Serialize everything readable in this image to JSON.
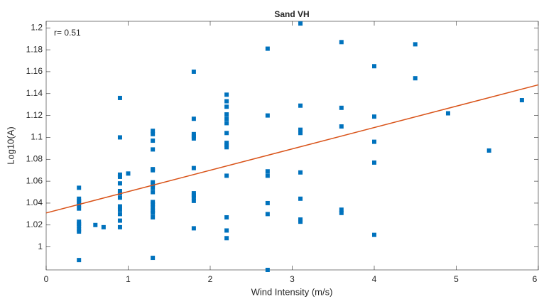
{
  "chart_data": {
    "type": "scatter",
    "title": "Sand VH",
    "annotation": "r= 0.51",
    "xlabel": "Wind Intensity (m/s)",
    "ylabel": "Log10(A)",
    "xlim": [
      0,
      6
    ],
    "ylim": [
      0.979,
      1.206
    ],
    "xticks": [
      0,
      1,
      2,
      3,
      4,
      5,
      6
    ],
    "yticks": [
      1,
      1.02,
      1.04,
      1.06,
      1.08,
      1.1,
      1.12,
      1.14,
      1.16,
      1.18,
      1.2
    ],
    "color": "#0072bd",
    "x": [
      0.4,
      0.4,
      0.4,
      0.4,
      0.4,
      0.4,
      0.4,
      0.4,
      0.4,
      0.4,
      0.4,
      0.4,
      0.6,
      0.7,
      0.9,
      0.9,
      0.9,
      0.9,
      0.9,
      0.9,
      0.9,
      0.9,
      0.9,
      0.9,
      0.9,
      0.9,
      0.9,
      1.0,
      1.3,
      1.3,
      1.3,
      1.3,
      1.3,
      1.3,
      1.3,
      1.3,
      1.3,
      1.3,
      1.3,
      1.3,
      1.3,
      1.3,
      1.3,
      1.3,
      1.3,
      1.8,
      1.8,
      1.8,
      1.8,
      1.8,
      1.8,
      1.8,
      1.8,
      1.8,
      1.8,
      1.8,
      2.2,
      2.2,
      2.2,
      2.2,
      2.2,
      2.2,
      2.2,
      2.2,
      2.2,
      2.2,
      2.2,
      2.2,
      2.2,
      2.2,
      2.7,
      2.7,
      2.7,
      2.7,
      2.7,
      2.7,
      2.7,
      3.1,
      3.1,
      3.1,
      3.1,
      3.1,
      3.1,
      3.1,
      3.1,
      3.6,
      3.6,
      3.6,
      3.6,
      3.6,
      4.0,
      4.0,
      4.0,
      4.0,
      4.0,
      4.5,
      4.5,
      4.9,
      5.4,
      5.8
    ],
    "values": [
      1.054,
      1.044,
      1.042,
      1.04,
      1.038,
      1.035,
      1.023,
      1.021,
      1.019,
      1.016,
      1.014,
      0.988,
      1.02,
      1.018,
      1.136,
      1.1,
      1.066,
      1.064,
      1.058,
      1.051,
      1.049,
      1.045,
      1.037,
      1.034,
      1.03,
      1.024,
      1.018,
      1.067,
      1.106,
      1.103,
      1.097,
      1.089,
      1.071,
      1.07,
      1.059,
      1.057,
      1.054,
      1.05,
      1.041,
      1.039,
      1.036,
      1.033,
      1.031,
      1.027,
      0.99,
      1.16,
      1.117,
      1.103,
      1.101,
      1.099,
      1.072,
      1.049,
      1.047,
      1.045,
      1.042,
      1.017,
      1.139,
      1.133,
      1.128,
      1.121,
      1.117,
      1.113,
      1.104,
      1.095,
      1.093,
      1.091,
      1.065,
      1.027,
      1.015,
      1.008,
      1.181,
      1.12,
      1.069,
      1.065,
      1.04,
      1.03,
      0.979,
      1.204,
      1.129,
      1.107,
      1.104,
      1.068,
      1.044,
      1.025,
      1.023,
      1.187,
      1.127,
      1.11,
      1.034,
      1.031,
      1.165,
      1.119,
      1.096,
      1.077,
      1.011,
      1.185,
      1.154,
      1.122,
      1.088,
      1.134
    ],
    "fit": {
      "x": [
        0,
        6
      ],
      "values": [
        1.031,
        1.148
      ],
      "color": "#d95319"
    }
  }
}
